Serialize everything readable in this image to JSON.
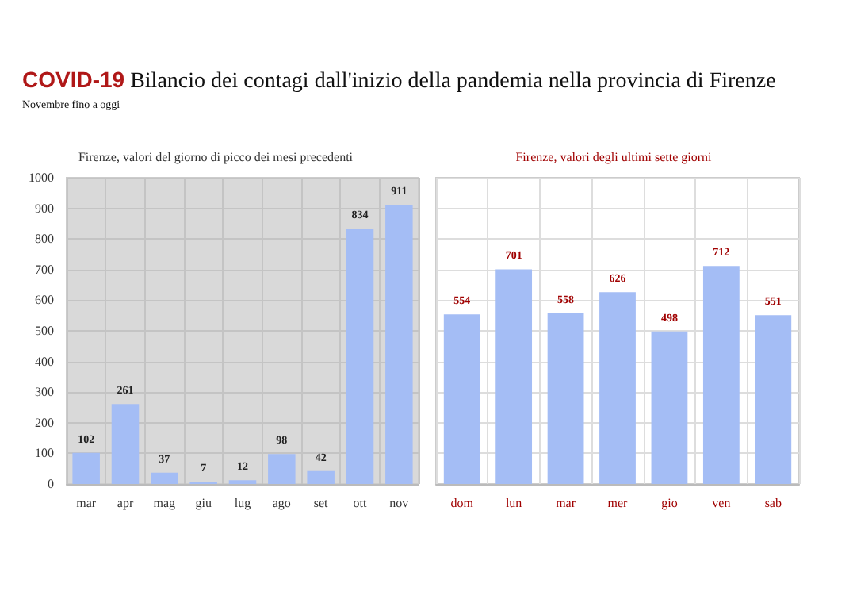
{
  "chart_data": [
    {
      "type": "other",
      "title": "COVID-19 Bilancio dei contagi dall'inizio della pandemia nella provincia di Firenze",
      "subtitle": "Novembre fino a oggi"
    },
    {
      "type": "bar",
      "title": "Firenze, valori del giorno di picco dei mesi precedenti",
      "categories": [
        "mar",
        "apr",
        "mag",
        "giu",
        "lug",
        "ago",
        "set",
        "ott",
        "nov"
      ],
      "values": [
        102,
        261,
        37,
        7,
        12,
        98,
        42,
        834,
        911
      ],
      "color": "#a4bdf5",
      "ylim": [
        0,
        1000
      ],
      "yticks": [
        0,
        100,
        200,
        300,
        400,
        500,
        600,
        700,
        800,
        900,
        1000
      ],
      "grid": true,
      "data_labels": true
    },
    {
      "type": "bar",
      "title": "Firenze, valori degli ultimi sette giorni",
      "categories": [
        "dom",
        "lun",
        "mar",
        "mer",
        "gio",
        "ven",
        "sab"
      ],
      "values": [
        554,
        701,
        558,
        626,
        498,
        712,
        551
      ],
      "color": "#a4bdf5",
      "ylim": [
        0,
        1000
      ],
      "yticks": [
        0,
        100,
        200,
        300,
        400,
        500,
        600,
        700,
        800,
        900,
        1000
      ],
      "grid": true,
      "data_labels": true,
      "tick_labels": "x"
    }
  ]
}
